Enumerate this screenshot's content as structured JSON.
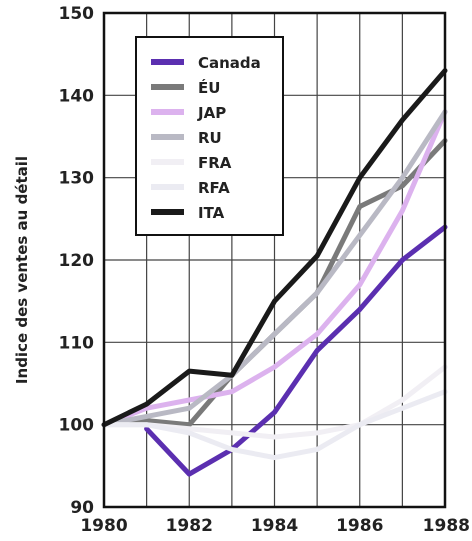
{
  "chart_data": {
    "type": "line",
    "title": "",
    "xlabel": "",
    "ylabel": "Indice des ventes au détail",
    "x": [
      1980,
      1981,
      1982,
      1983,
      1984,
      1985,
      1986,
      1987,
      1988
    ],
    "xticks": [
      1980,
      1982,
      1984,
      1986,
      1988
    ],
    "xtick_labels": [
      "1980",
      "1982",
      "1984",
      "1986",
      "1988"
    ],
    "yticks": [
      90,
      100,
      110,
      120,
      130,
      140,
      150
    ],
    "ytick_labels": [
      "90",
      "100",
      "110",
      "120",
      "130",
      "140",
      "150"
    ],
    "xlim": [
      1980,
      1988
    ],
    "ylim": [
      90,
      150
    ],
    "grid": true,
    "legend_position": "top-left",
    "series": [
      {
        "name": "Canada",
        "color": "#5b2fb0",
        "values": [
          null,
          99.5,
          94,
          97,
          101.5,
          109,
          114,
          120,
          124
        ]
      },
      {
        "name": "ÉU",
        "color": "#7a7a7a",
        "values": [
          100,
          100.5,
          100,
          106,
          111,
          116,
          126.5,
          129,
          134.5
        ]
      },
      {
        "name": "JAP",
        "color": "#dcb2ee",
        "values": [
          100,
          102,
          103,
          104,
          107,
          111,
          117,
          126,
          138
        ]
      },
      {
        "name": "RU",
        "color": "#b9b9c4",
        "values": [
          100,
          101,
          102,
          106,
          111,
          116,
          123,
          130,
          138
        ]
      },
      {
        "name": "FRA",
        "color": "#f1eff4",
        "values": [
          100,
          100,
          99.5,
          99,
          98.5,
          99,
          100,
          103,
          107
        ]
      },
      {
        "name": "RFA",
        "color": "#ebebf2",
        "values": [
          100,
          100,
          99,
          97,
          96,
          97,
          100,
          102,
          104
        ]
      },
      {
        "name": "ITA",
        "color": "#1a1a1a",
        "values": [
          100,
          102.5,
          106.5,
          106,
          115,
          120.5,
          130,
          137,
          143
        ]
      }
    ]
  }
}
